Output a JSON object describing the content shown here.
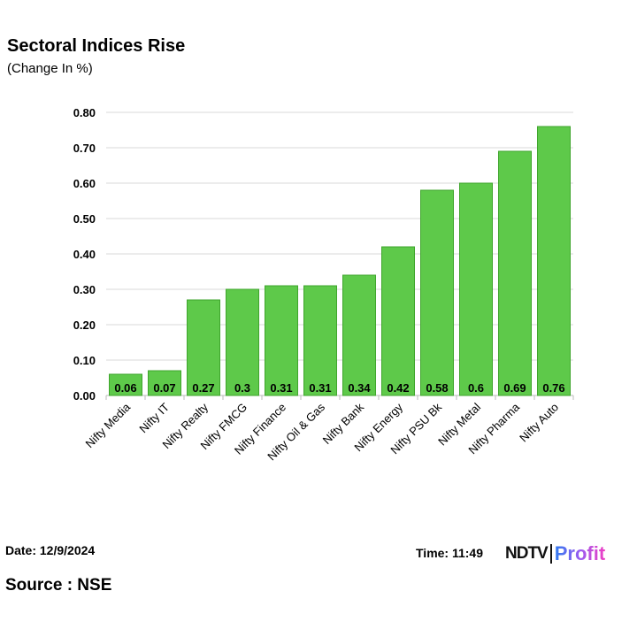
{
  "chart_data": {
    "type": "bar",
    "title": "Sectoral Indices Rise",
    "subtitle": "(Change In %)",
    "categories": [
      "Nifty Media",
      "Nifty IT",
      "Nifty Realty",
      "Nifty FMCG",
      "Nifty Finance",
      "Nifty Oil & Gas",
      "Nifty Bank",
      "Nifty Energy",
      "Nifty PSU Bk",
      "Nifty Metal",
      "Nifty Pharma",
      "Nifty Auto"
    ],
    "values": [
      0.06,
      0.07,
      0.27,
      0.3,
      0.31,
      0.31,
      0.34,
      0.42,
      0.58,
      0.6,
      0.69,
      0.76
    ],
    "data_labels": [
      "0.06",
      "0.07",
      "0.27",
      "0.3",
      "0.31",
      "0.31",
      "0.34",
      "0.42",
      "0.58",
      "0.6",
      "0.69",
      "0.76"
    ],
    "ylim": [
      0,
      0.8
    ],
    "yticks": [
      "0.00",
      "0.10",
      "0.20",
      "0.30",
      "0.40",
      "0.50",
      "0.60",
      "0.70",
      "0.80"
    ],
    "grid": true,
    "bar_color": "#5ec94a",
    "bar_edge_color": "#3fa52c"
  },
  "footer": {
    "date": "Date: 12/9/2024",
    "time": "Time: 11:49",
    "source": "Source : NSE",
    "logo_ndtv": "NDTV",
    "logo_profit": "Profit"
  }
}
